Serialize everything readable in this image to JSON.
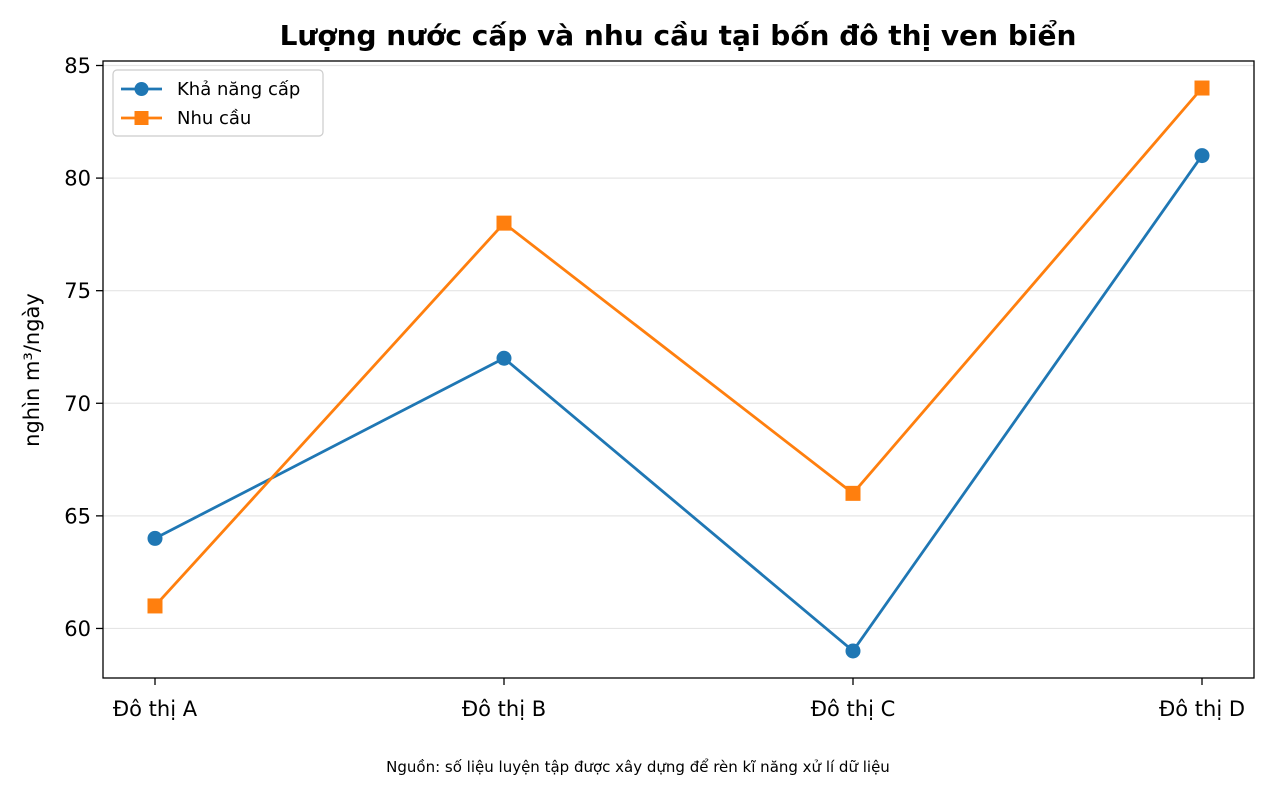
{
  "chart_data": {
    "type": "line",
    "title": "Lượng nước cấp và nhu cầu tại bốn đô thị ven biển",
    "xlabel": "",
    "ylabel": "nghìn m³/ngày",
    "categories": [
      "Đô thị A",
      "Đô thị B",
      "Đô thị C",
      "Đô thị D"
    ],
    "ylim": [
      57.8,
      85.2
    ],
    "yticks": [
      60,
      65,
      70,
      75,
      80,
      85
    ],
    "grid": "horizontal",
    "legend_position": "upper-left",
    "series": [
      {
        "name": "Khả năng cấp",
        "values": [
          64,
          72,
          59,
          81
        ],
        "color": "#1f77b4",
        "marker": "circle"
      },
      {
        "name": "Nhu cầu",
        "values": [
          61,
          78,
          66,
          84
        ],
        "color": "#ff7f0e",
        "marker": "square"
      }
    ],
    "footnote": "Nguồn: số liệu luyện tập được xây dựng để rèn kĩ năng xử lí dữ liệu"
  }
}
